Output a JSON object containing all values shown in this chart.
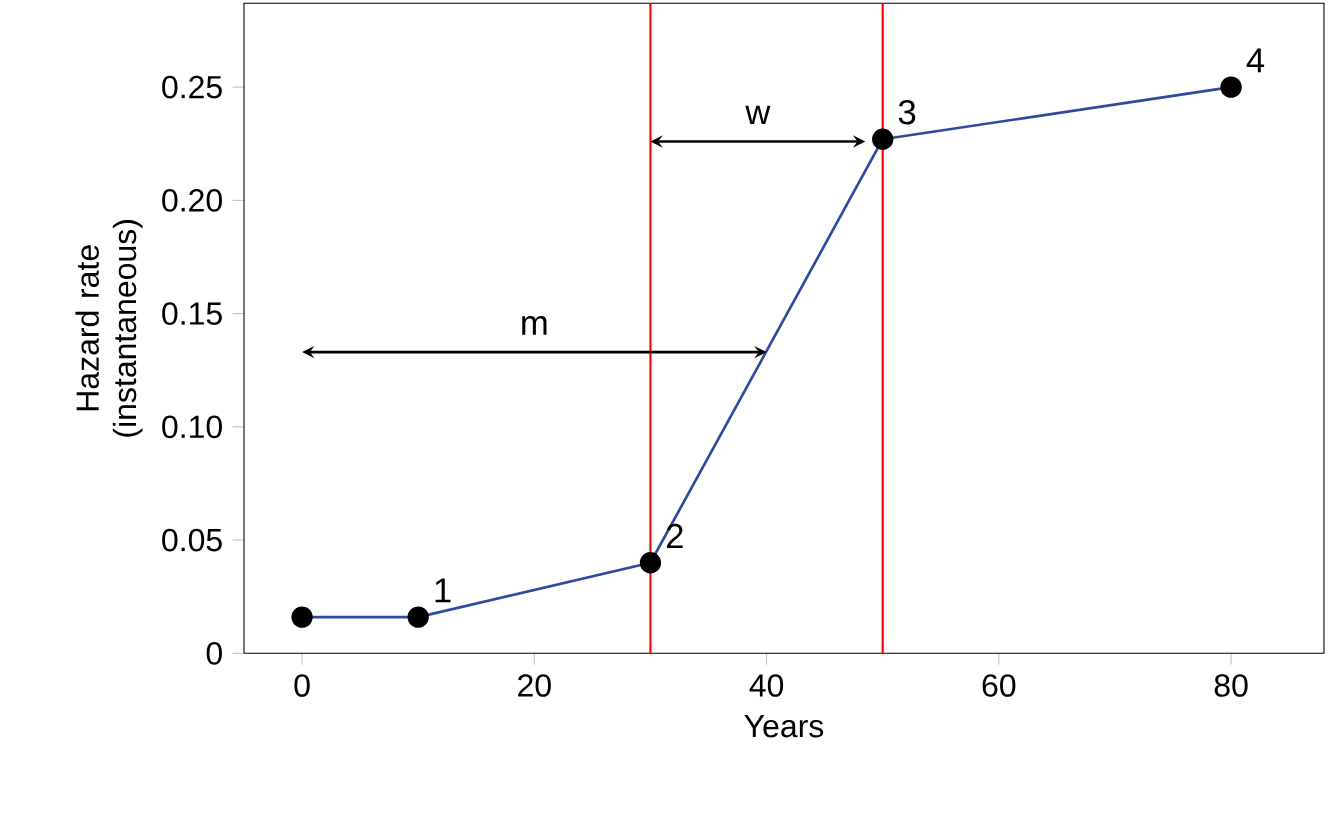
{
  "chart_data": {
    "type": "line",
    "xlabel": "Years",
    "ylabel": "Hazard rate (instantaneous)",
    "xlim": [
      -5,
      88
    ],
    "ylim": [
      0,
      0.287
    ],
    "xticks": [
      0,
      20,
      40,
      60,
      80
    ],
    "yticks": [
      0,
      0.05,
      {
        "value": 0.1,
        "label": "0.10"
      },
      0.15,
      {
        "value": 0.2,
        "label": "0.20"
      },
      0.25
    ],
    "marker": "circle",
    "grid": false,
    "series": [
      {
        "color": "#2e4a9e",
        "x": [
          0,
          10,
          30,
          50,
          80
        ],
        "values": [
          0.016,
          0.016,
          0.04,
          0.227,
          0.25
        ]
      }
    ],
    "ref_lines": [
      {
        "axis": "x",
        "value": 30,
        "color": "#ff0000"
      },
      {
        "axis": "x",
        "value": 50,
        "color": "#ff0000"
      }
    ],
    "annotations": [
      {
        "text": "1",
        "x": 10,
        "y": 0.016
      },
      {
        "text": "2",
        "x": 30,
        "y": 0.04
      },
      {
        "text": "3",
        "x": 50,
        "y": 0.227
      },
      {
        "text": "4",
        "x": 80,
        "y": 0.25
      },
      "m",
      "w"
    ]
  }
}
